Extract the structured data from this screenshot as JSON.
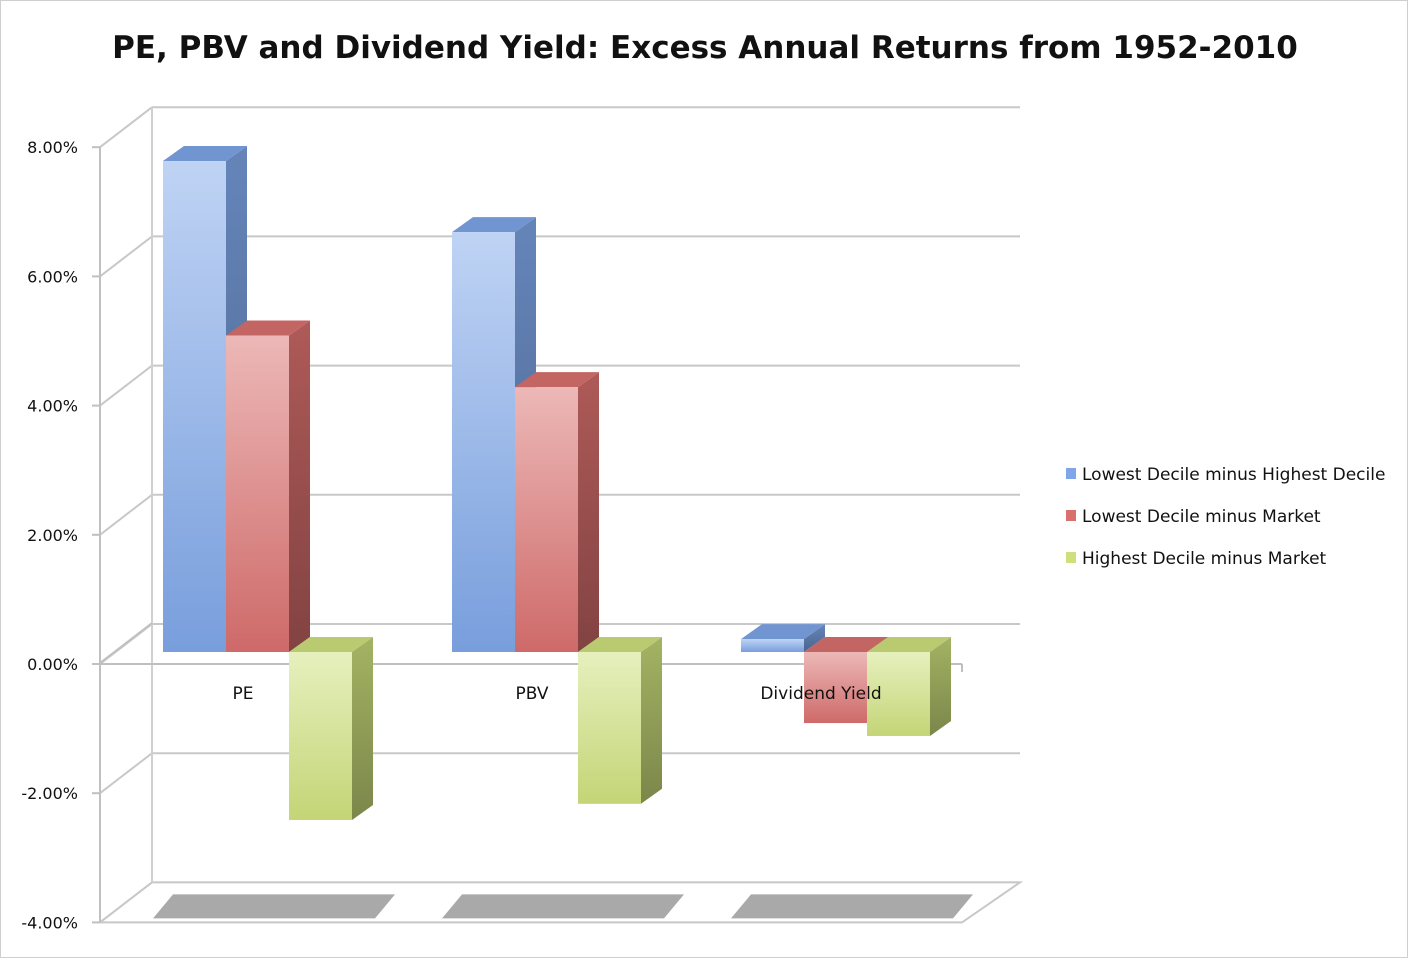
{
  "chart_data": {
    "type": "bar",
    "title": "PE, PBV and Dividend Yield: Excess Annual Returns from 1952-2010",
    "categories": [
      "PE",
      "PBV",
      "Dividend Yield"
    ],
    "series": [
      {
        "name": "Lowest Decile minus Highest Decile",
        "values": [
          7.6,
          6.5,
          0.2
        ],
        "color": "#7ea6e8"
      },
      {
        "name": "Lowest Decile minus Market",
        "values": [
          4.9,
          4.1,
          -1.1
        ],
        "color": "#d9706e"
      },
      {
        "name": "Highest Decile minus Market",
        "values": [
          -2.6,
          -2.35,
          -1.3
        ],
        "color": "#cde07c"
      }
    ],
    "y_ticks": [
      "8.00%",
      "6.00%",
      "4.00%",
      "2.00%",
      "0.00%",
      "-2.00%",
      "-4.00%"
    ],
    "ylim": [
      -4,
      8
    ],
    "xlabel": "",
    "ylabel": "",
    "grid": true,
    "legend_position": "right",
    "style": "3d-clustered-column"
  }
}
